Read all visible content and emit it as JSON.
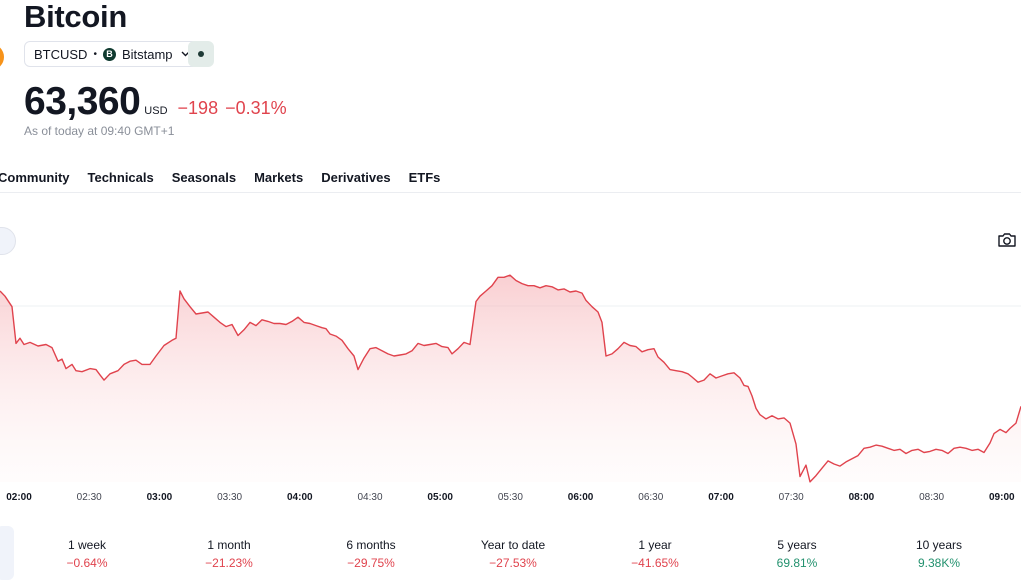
{
  "header": {
    "title": "Bitcoin",
    "symbol": "BTCUSD",
    "separator": "•",
    "exchange_logo": "B",
    "exchange": "Bitstamp",
    "price": "63,360",
    "currency": "USD",
    "change_abs": "−198",
    "change_pct": "−0.31%",
    "as_of": "As of today at 09:40 GMT+1"
  },
  "tabs": [
    "Community",
    "Technicals",
    "Seasonals",
    "Markets",
    "Derivatives",
    "ETFs"
  ],
  "icons": {
    "camera": "camera-icon",
    "chevron": "chevron-down-icon",
    "status": "status-dot-icon"
  },
  "colors": {
    "line": "#e0434d",
    "fill": "#f7c9cc",
    "negative": "#e0434d",
    "positive": "#22916e"
  },
  "chart_data": {
    "type": "area",
    "x_ticks": [
      "02:00",
      "02:30",
      "03:00",
      "03:30",
      "04:00",
      "04:30",
      "05:00",
      "05:30",
      "06:00",
      "06:30",
      "07:00",
      "07:30",
      "08:00",
      "08:30",
      "09:00"
    ],
    "major_ticks": [
      "02:00",
      "03:00",
      "04:00",
      "05:00",
      "06:00",
      "07:00",
      "08:00",
      "09:00"
    ],
    "series": [
      {
        "values": [
          [
            0,
            63470
          ],
          [
            5,
            63460
          ],
          [
            12,
            63440
          ],
          [
            16,
            63370
          ],
          [
            20,
            63380
          ],
          [
            24,
            63368
          ],
          [
            30,
            63372
          ],
          [
            38,
            63365
          ],
          [
            46,
            63368
          ],
          [
            52,
            63362
          ],
          [
            58,
            63336
          ],
          [
            62,
            63340
          ],
          [
            66,
            63322
          ],
          [
            72,
            63330
          ],
          [
            76,
            63318
          ],
          [
            82,
            63316
          ],
          [
            90,
            63322
          ],
          [
            96,
            63320
          ],
          [
            100,
            63310
          ],
          [
            104,
            63300
          ],
          [
            110,
            63312
          ],
          [
            118,
            63318
          ],
          [
            124,
            63330
          ],
          [
            130,
            63336
          ],
          [
            136,
            63338
          ],
          [
            142,
            63330
          ],
          [
            150,
            63330
          ],
          [
            156,
            63346
          ],
          [
            164,
            63366
          ],
          [
            172,
            63376
          ],
          [
            176,
            63380
          ],
          [
            180,
            63470
          ],
          [
            184,
            63455
          ],
          [
            190,
            63440
          ],
          [
            196,
            63426
          ],
          [
            202,
            63428
          ],
          [
            208,
            63430
          ],
          [
            214,
            63420
          ],
          [
            220,
            63410
          ],
          [
            226,
            63402
          ],
          [
            232,
            63406
          ],
          [
            238,
            63385
          ],
          [
            244,
            63396
          ],
          [
            250,
            63410
          ],
          [
            256,
            63404
          ],
          [
            262,
            63415
          ],
          [
            268,
            63412
          ],
          [
            274,
            63408
          ],
          [
            280,
            63408
          ],
          [
            286,
            63406
          ],
          [
            292,
            63412
          ],
          [
            298,
            63420
          ],
          [
            304,
            63410
          ],
          [
            310,
            63408
          ],
          [
            316,
            63404
          ],
          [
            322,
            63400
          ],
          [
            326,
            63398
          ],
          [
            330,
            63388
          ],
          [
            336,
            63384
          ],
          [
            342,
            63376
          ],
          [
            348,
            63360
          ],
          [
            354,
            63346
          ],
          [
            358,
            63320
          ],
          [
            364,
            63342
          ],
          [
            370,
            63360
          ],
          [
            376,
            63362
          ],
          [
            382,
            63356
          ],
          [
            388,
            63350
          ],
          [
            394,
            63346
          ],
          [
            400,
            63348
          ],
          [
            406,
            63350
          ],
          [
            412,
            63356
          ],
          [
            418,
            63370
          ],
          [
            424,
            63366
          ],
          [
            430,
            63368
          ],
          [
            436,
            63370
          ],
          [
            442,
            63364
          ],
          [
            448,
            63362
          ],
          [
            452,
            63350
          ],
          [
            458,
            63360
          ],
          [
            464,
            63372
          ],
          [
            470,
            63368
          ],
          [
            476,
            63450
          ],
          [
            480,
            63460
          ],
          [
            486,
            63470
          ],
          [
            492,
            63480
          ],
          [
            498,
            63496
          ],
          [
            504,
            63496
          ],
          [
            510,
            63500
          ],
          [
            516,
            63490
          ],
          [
            522,
            63484
          ],
          [
            528,
            63480
          ],
          [
            534,
            63480
          ],
          [
            540,
            63476
          ],
          [
            546,
            63480
          ],
          [
            552,
            63478
          ],
          [
            558,
            63472
          ],
          [
            564,
            63474
          ],
          [
            570,
            63468
          ],
          [
            576,
            63470
          ],
          [
            582,
            63466
          ],
          [
            586,
            63452
          ],
          [
            592,
            63440
          ],
          [
            598,
            63430
          ],
          [
            602,
            63410
          ],
          [
            606,
            63346
          ],
          [
            612,
            63350
          ],
          [
            618,
            63360
          ],
          [
            624,
            63372
          ],
          [
            630,
            63366
          ],
          [
            636,
            63364
          ],
          [
            642,
            63354
          ],
          [
            648,
            63358
          ],
          [
            654,
            63360
          ],
          [
            658,
            63344
          ],
          [
            664,
            63334
          ],
          [
            670,
            63320
          ],
          [
            676,
            63318
          ],
          [
            682,
            63316
          ],
          [
            688,
            63312
          ],
          [
            692,
            63306
          ],
          [
            698,
            63296
          ],
          [
            704,
            63300
          ],
          [
            710,
            63312
          ],
          [
            716,
            63304
          ],
          [
            722,
            63308
          ],
          [
            728,
            63312
          ],
          [
            734,
            63314
          ],
          [
            740,
            63304
          ],
          [
            744,
            63290
          ],
          [
            748,
            63288
          ],
          [
            752,
            63270
          ],
          [
            756,
            63246
          ],
          [
            760,
            63234
          ],
          [
            766,
            63226
          ],
          [
            772,
            63232
          ],
          [
            778,
            63226
          ],
          [
            784,
            63228
          ],
          [
            790,
            63218
          ],
          [
            796,
            63178
          ],
          [
            800,
            63116
          ],
          [
            806,
            63138
          ],
          [
            810,
            63106
          ],
          [
            816,
            63118
          ],
          [
            822,
            63132
          ],
          [
            828,
            63146
          ],
          [
            834,
            63140
          ],
          [
            840,
            63136
          ],
          [
            846,
            63144
          ],
          [
            852,
            63150
          ],
          [
            858,
            63156
          ],
          [
            864,
            63170
          ],
          [
            870,
            63172
          ],
          [
            876,
            63176
          ],
          [
            882,
            63174
          ],
          [
            888,
            63170
          ],
          [
            894,
            63166
          ],
          [
            900,
            63168
          ],
          [
            906,
            63160
          ],
          [
            912,
            63166
          ],
          [
            918,
            63168
          ],
          [
            924,
            63162
          ],
          [
            930,
            63164
          ],
          [
            936,
            63168
          ],
          [
            942,
            63166
          ],
          [
            948,
            63160
          ],
          [
            954,
            63170
          ],
          [
            960,
            63172
          ],
          [
            966,
            63170
          ],
          [
            972,
            63166
          ],
          [
            978,
            63168
          ],
          [
            984,
            63162
          ],
          [
            990,
            63180
          ],
          [
            994,
            63198
          ],
          [
            1000,
            63206
          ],
          [
            1006,
            63200
          ],
          [
            1010,
            63208
          ],
          [
            1016,
            63218
          ],
          [
            1021,
            63250
          ]
        ]
      }
    ],
    "grid": false,
    "legend": "none"
  },
  "performance": [
    {
      "label": "1 week",
      "value": "−0.64%",
      "trend": "neg"
    },
    {
      "label": "1 month",
      "value": "−21.23%",
      "trend": "neg"
    },
    {
      "label": "6 months",
      "value": "−29.75%",
      "trend": "neg"
    },
    {
      "label": "Year to date",
      "value": "−27.53%",
      "trend": "neg"
    },
    {
      "label": "1 year",
      "value": "−41.65%",
      "trend": "neg"
    },
    {
      "label": "5 years",
      "value": "69.81%",
      "trend": "pos"
    },
    {
      "label": "10 years",
      "value": "9.38K%",
      "trend": "pos"
    }
  ]
}
